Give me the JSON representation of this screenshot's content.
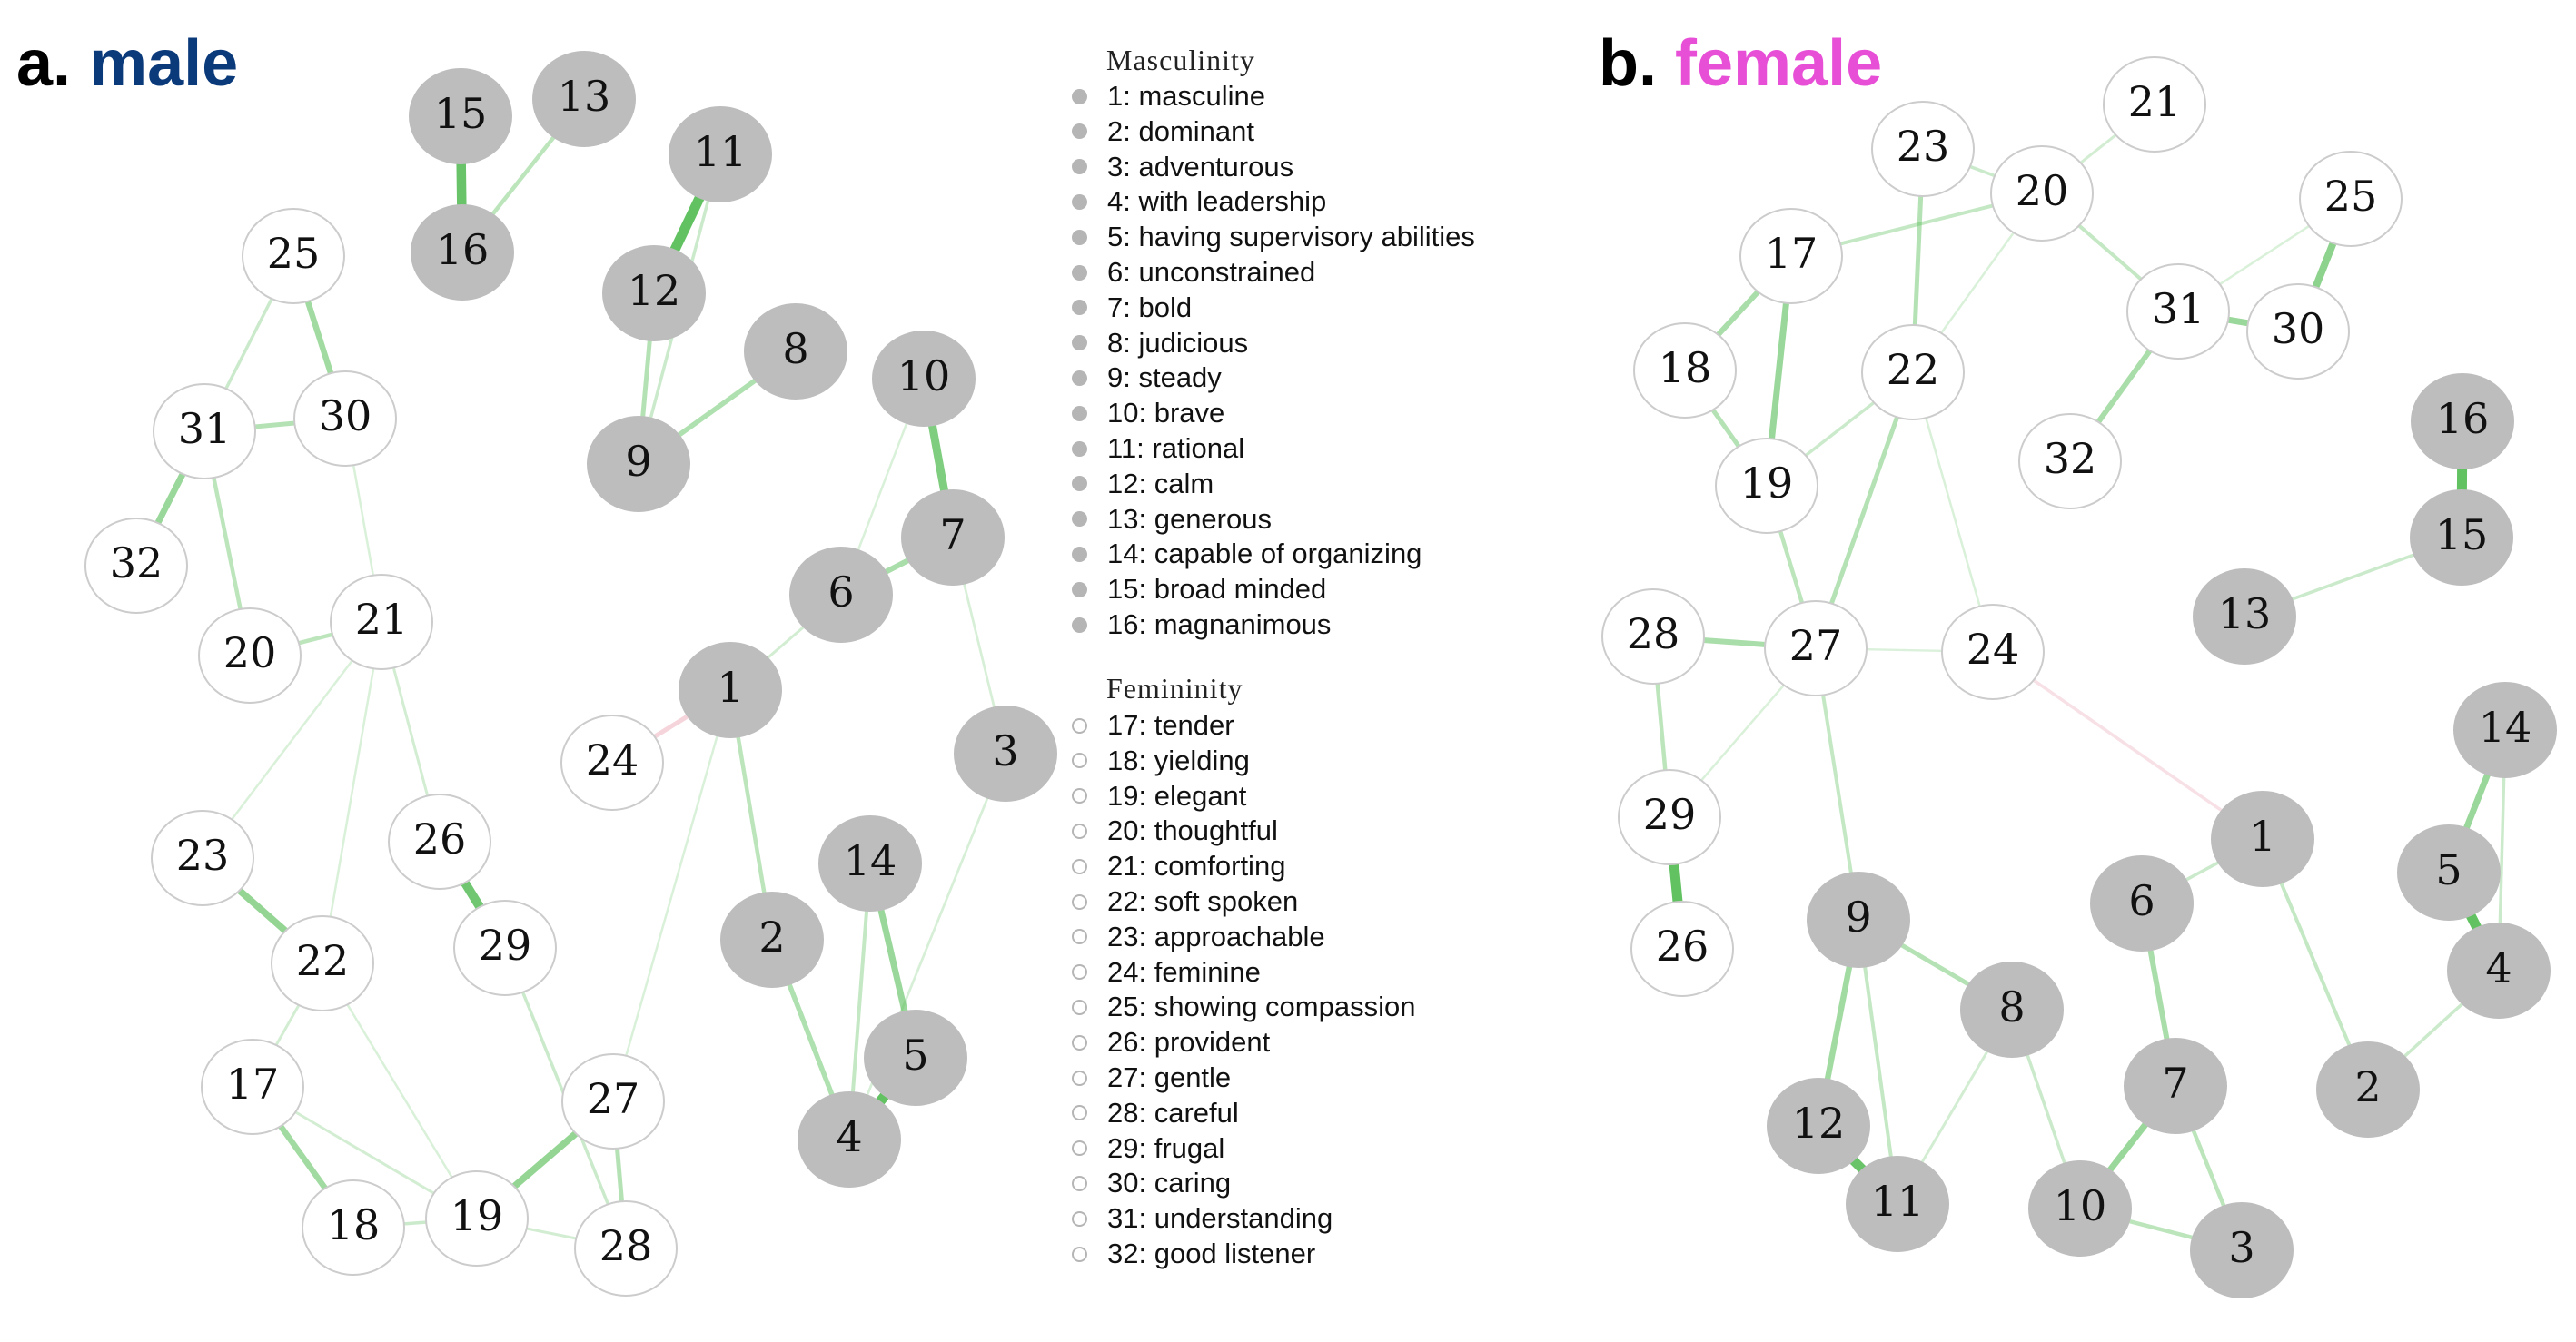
{
  "figure": {
    "panels": [
      {
        "id": "male",
        "prefix": "a.",
        "name": "male",
        "name_color": "#0b3a7a"
      },
      {
        "id": "female",
        "prefix": "b.",
        "name": "female",
        "name_color": "#e84fd7"
      }
    ]
  },
  "colors": {
    "masculine_fill": "#bdbdbd",
    "feminine_fill": "#ffffff",
    "feminine_stroke": "#cccccc",
    "positive_edge": "#5cbf5c",
    "negative_edge": "#e8a2b0"
  },
  "legend": {
    "masculinity": {
      "heading": "Masculinity",
      "items": [
        "1: masculine",
        "2: dominant",
        "3: adventurous",
        "4: with leadership",
        "5: having supervisory abilities",
        "6: unconstrained",
        "7: bold",
        "8: judicious",
        "9: steady",
        "10: brave",
        "11: rational",
        "12: calm",
        "13: generous",
        "14: capable of organizing",
        "15: broad minded",
        "16: magnanimous"
      ]
    },
    "femininity": {
      "heading": "Femininity",
      "items": [
        "17: tender",
        "18: yielding",
        "19: elegant",
        "20: thoughtful",
        "21: comforting",
        "22: soft spoken",
        "23: approachable",
        "24: feminine",
        "25: showing compassion",
        "26: provident",
        "27: gentle",
        "28: careful",
        "29: frugal",
        "30: caring",
        "31: understanding",
        "32: good listener"
      ]
    }
  },
  "networks": {
    "male": {
      "edges": [
        [
          15,
          16,
          0.9
        ],
        [
          16,
          13,
          0.3
        ],
        [
          11,
          12,
          0.95
        ],
        [
          12,
          9,
          0.35
        ],
        [
          11,
          9,
          0.2
        ],
        [
          9,
          8,
          0.4
        ],
        [
          10,
          7,
          0.75
        ],
        [
          7,
          6,
          0.45
        ],
        [
          7,
          3,
          0.12
        ],
        [
          6,
          1,
          0.15
        ],
        [
          1,
          24,
          -0.35
        ],
        [
          1,
          2,
          0.3
        ],
        [
          2,
          4,
          0.4
        ],
        [
          14,
          5,
          0.55
        ],
        [
          5,
          4,
          0.95
        ],
        [
          4,
          14,
          0.25
        ],
        [
          3,
          4,
          0.12
        ],
        [
          1,
          27,
          0.1
        ],
        [
          10,
          6,
          0.1
        ],
        [
          25,
          30,
          0.5
        ],
        [
          25,
          31,
          0.2
        ],
        [
          31,
          30,
          0.35
        ],
        [
          31,
          32,
          0.55
        ],
        [
          31,
          20,
          0.3
        ],
        [
          20,
          21,
          0.3
        ],
        [
          30,
          21,
          0.1
        ],
        [
          21,
          23,
          0.1
        ],
        [
          21,
          22,
          0.1
        ],
        [
          21,
          26,
          0.15
        ],
        [
          23,
          22,
          0.6
        ],
        [
          26,
          29,
          0.85
        ],
        [
          29,
          28,
          0.2
        ],
        [
          22,
          17,
          0.15
        ],
        [
          22,
          19,
          0.1
        ],
        [
          17,
          18,
          0.5
        ],
        [
          17,
          19,
          0.15
        ],
        [
          18,
          19,
          0.2
        ],
        [
          19,
          27,
          0.6
        ],
        [
          27,
          28,
          0.35
        ],
        [
          19,
          28,
          0.15
        ]
      ]
    },
    "female": {
      "edges": [
        [
          23,
          20,
          0.2
        ],
        [
          23,
          22,
          0.35
        ],
        [
          20,
          21,
          0.15
        ],
        [
          17,
          20,
          0.25
        ],
        [
          17,
          19,
          0.55
        ],
        [
          17,
          18,
          0.45
        ],
        [
          18,
          19,
          0.35
        ],
        [
          19,
          22,
          0.2
        ],
        [
          20,
          22,
          0.1
        ],
        [
          20,
          31,
          0.25
        ],
        [
          22,
          27,
          0.35
        ],
        [
          19,
          27,
          0.3
        ],
        [
          31,
          30,
          0.55
        ],
        [
          30,
          25,
          0.65
        ],
        [
          31,
          32,
          0.45
        ],
        [
          31,
          25,
          0.1
        ],
        [
          27,
          28,
          0.45
        ],
        [
          28,
          29,
          0.3
        ],
        [
          29,
          26,
          0.95
        ],
        [
          27,
          9,
          0.25
        ],
        [
          27,
          24,
          0.08
        ],
        [
          24,
          1,
          -0.2
        ],
        [
          16,
          15,
          0.95
        ],
        [
          15,
          13,
          0.2
        ],
        [
          14,
          5,
          0.55
        ],
        [
          5,
          4,
          0.95
        ],
        [
          14,
          4,
          0.2
        ],
        [
          4,
          2,
          0.2
        ],
        [
          1,
          6,
          0.2
        ],
        [
          1,
          2,
          0.25
        ],
        [
          6,
          7,
          0.45
        ],
        [
          7,
          10,
          0.55
        ],
        [
          7,
          3,
          0.3
        ],
        [
          10,
          3,
          0.3
        ],
        [
          9,
          8,
          0.35
        ],
        [
          9,
          12,
          0.5
        ],
        [
          9,
          11,
          0.25
        ],
        [
          12,
          11,
          0.9
        ],
        [
          8,
          10,
          0.2
        ],
        [
          8,
          11,
          0.15
        ],
        [
          27,
          29,
          0.1
        ],
        [
          22,
          24,
          0.1
        ]
      ]
    }
  }
}
